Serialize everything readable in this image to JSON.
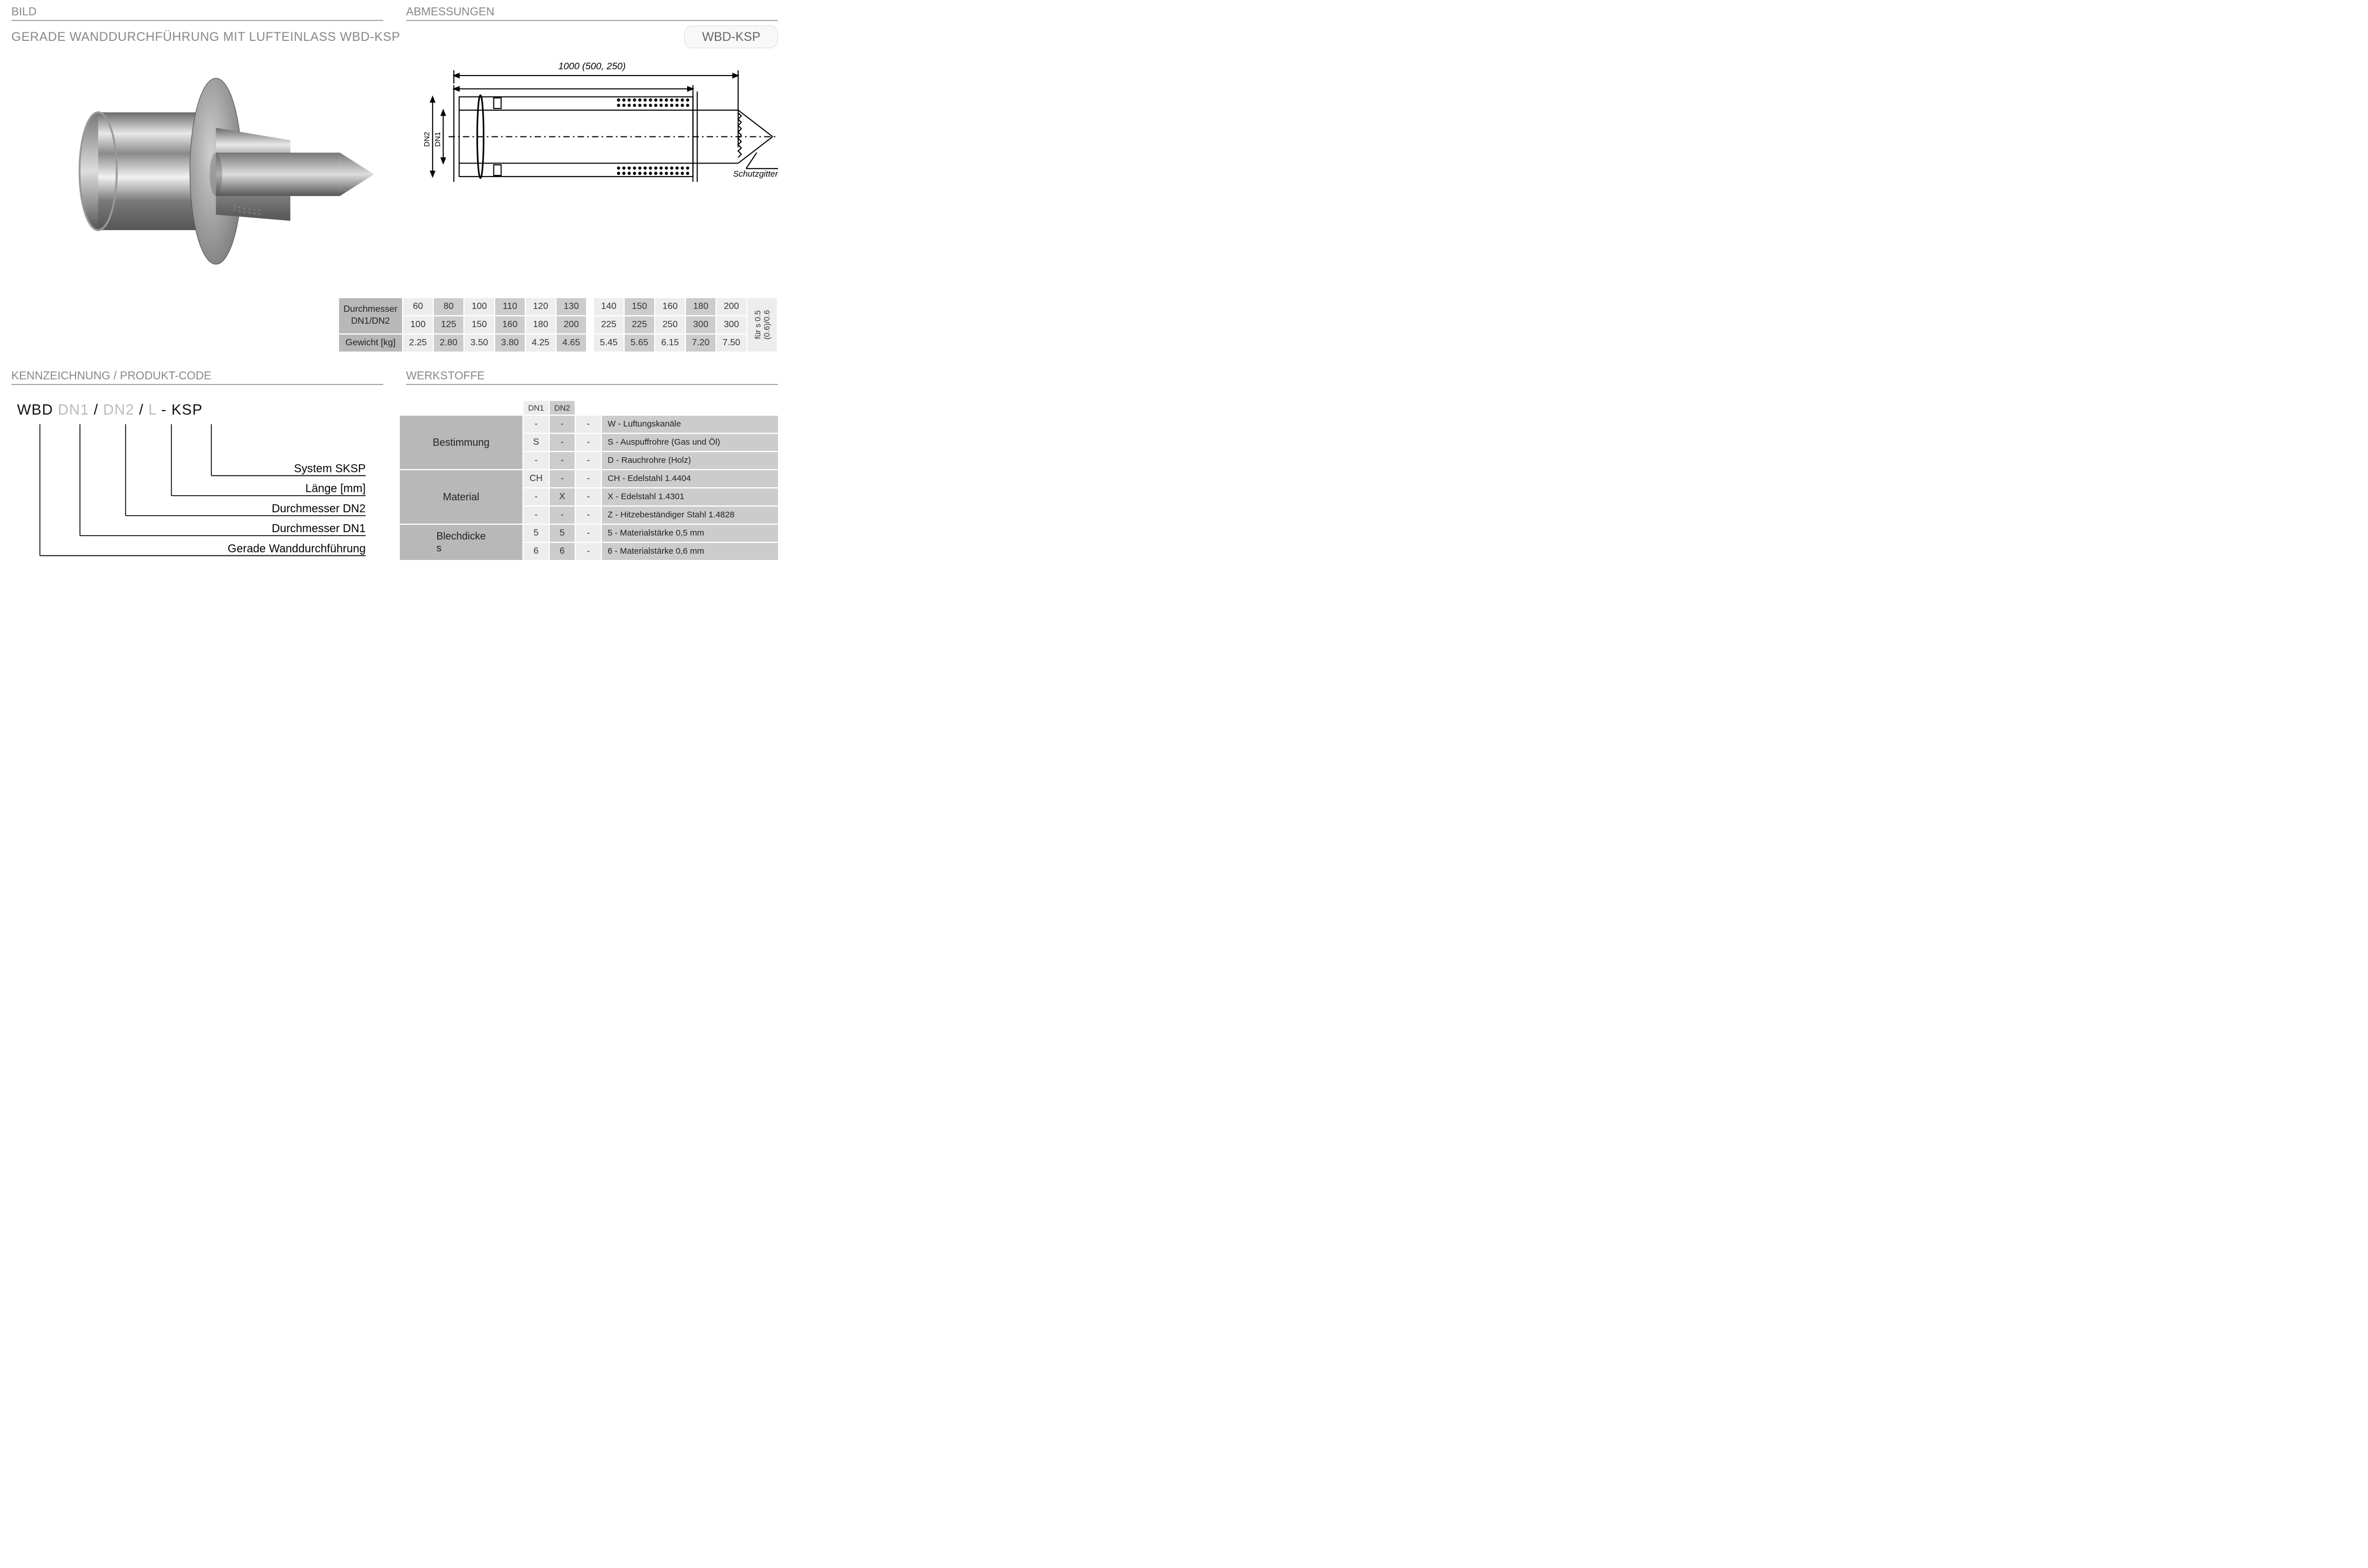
{
  "headers": {
    "bild": "BILD",
    "abmessungen": "ABMESSUNGEN",
    "kennzeichnung": "KENNZEICHNUNG  / PRODUKT-CODE",
    "werkstoffe": "WERKSTOFFE"
  },
  "title": "GERADE WANDDURCHFÜHRUNG MIT LUFTEINLASS  WBD-KSP",
  "badge": "WBD-KSP",
  "drawing": {
    "length_label": "1000 (500, 250)",
    "dn1": "DN1",
    "dn2": "DN2",
    "schutzgitter": "Schutzgitter",
    "stroke": "#000000",
    "fill": "#ffffff"
  },
  "dim_table": {
    "row_headers": [
      "Durchmesser\nDN1/DN2",
      "Gewicht [kg]"
    ],
    "group1": {
      "dn1": [
        "60",
        "80",
        "100",
        "110",
        "120",
        "130"
      ],
      "dn2": [
        "100",
        "125",
        "150",
        "160",
        "180",
        "200"
      ],
      "wt": [
        "2.25",
        "2.80",
        "3.50",
        "3.80",
        "4.25",
        "4.65"
      ],
      "shade": [
        "light",
        "dark",
        "light",
        "dark",
        "light",
        "dark"
      ]
    },
    "group2": {
      "dn1": [
        "140",
        "150",
        "160",
        "180",
        "200"
      ],
      "dn2": [
        "225",
        "225",
        "250",
        "300",
        "300"
      ],
      "wt": [
        "5.45",
        "5.65",
        "6.15",
        "7.20",
        "7.50"
      ],
      "shade": [
        "light",
        "dark",
        "light",
        "dark",
        "light"
      ]
    },
    "side_note": "für s 0.5\n(0.6)/0.6",
    "colors": {
      "header_bg": "#b8b8b8",
      "light_bg": "#ededed",
      "dark_bg": "#cccccc"
    }
  },
  "code": {
    "parts": [
      {
        "text": "WBD",
        "cls": "black"
      },
      {
        "text": " ",
        "cls": "black"
      },
      {
        "text": "DN1",
        "cls": "grey"
      },
      {
        "text": " / ",
        "cls": "black"
      },
      {
        "text": "DN2",
        "cls": "grey"
      },
      {
        "text": "  /  ",
        "cls": "black"
      },
      {
        "text": "L",
        "cls": "grey"
      },
      {
        "text": " -  ",
        "cls": "black"
      },
      {
        "text": "KSP",
        "cls": "black"
      }
    ],
    "labels": [
      "System SKSP",
      "Länge [mm]",
      "Durchmesser DN2",
      "Durchmesser DN1",
      "Gerade Wanddurchführung"
    ]
  },
  "materials": {
    "col_headers": [
      "DN1",
      "DN2"
    ],
    "categories": [
      {
        "name": "Bestimmung",
        "rows": [
          {
            "c": [
              "-",
              "-",
              "-"
            ],
            "sh": [
              "light",
              "dark",
              "light"
            ],
            "desc": "W - Luftungskanäle"
          },
          {
            "c": [
              "S",
              "-",
              "-"
            ],
            "sh": [
              "light",
              "dark",
              "light"
            ],
            "desc": "S  - Auspuffrohre (Gas und Öl)"
          },
          {
            "c": [
              "-",
              "-",
              "-"
            ],
            "sh": [
              "light",
              "dark",
              "light"
            ],
            "desc": "D  - Rauchrohre (Holz)"
          }
        ]
      },
      {
        "name": "Material",
        "rows": [
          {
            "c": [
              "CH",
              "-",
              "-"
            ],
            "sh": [
              "light",
              "dark",
              "light"
            ],
            "desc": "CH - Edelstahl  1.4404"
          },
          {
            "c": [
              "-",
              "X",
              "-"
            ],
            "sh": [
              "light",
              "dark",
              "light"
            ],
            "desc": "X   - Edelstahl 1.4301"
          },
          {
            "c": [
              "-",
              "-",
              "-"
            ],
            "sh": [
              "light",
              "dark",
              "light"
            ],
            "desc": "Z   - Hitzebeständiger Stahl 1.4828"
          }
        ]
      },
      {
        "name": "Blechdicke\ns",
        "rows": [
          {
            "c": [
              "5",
              "5",
              "-"
            ],
            "sh": [
              "light",
              "dark",
              "light"
            ],
            "desc": "5 - Materialstärke 0,5 mm"
          },
          {
            "c": [
              "6",
              "6",
              "-"
            ],
            "sh": [
              "light",
              "dark",
              "light"
            ],
            "desc": "6 - Materialstärke 0,6 mm"
          }
        ]
      }
    ]
  }
}
